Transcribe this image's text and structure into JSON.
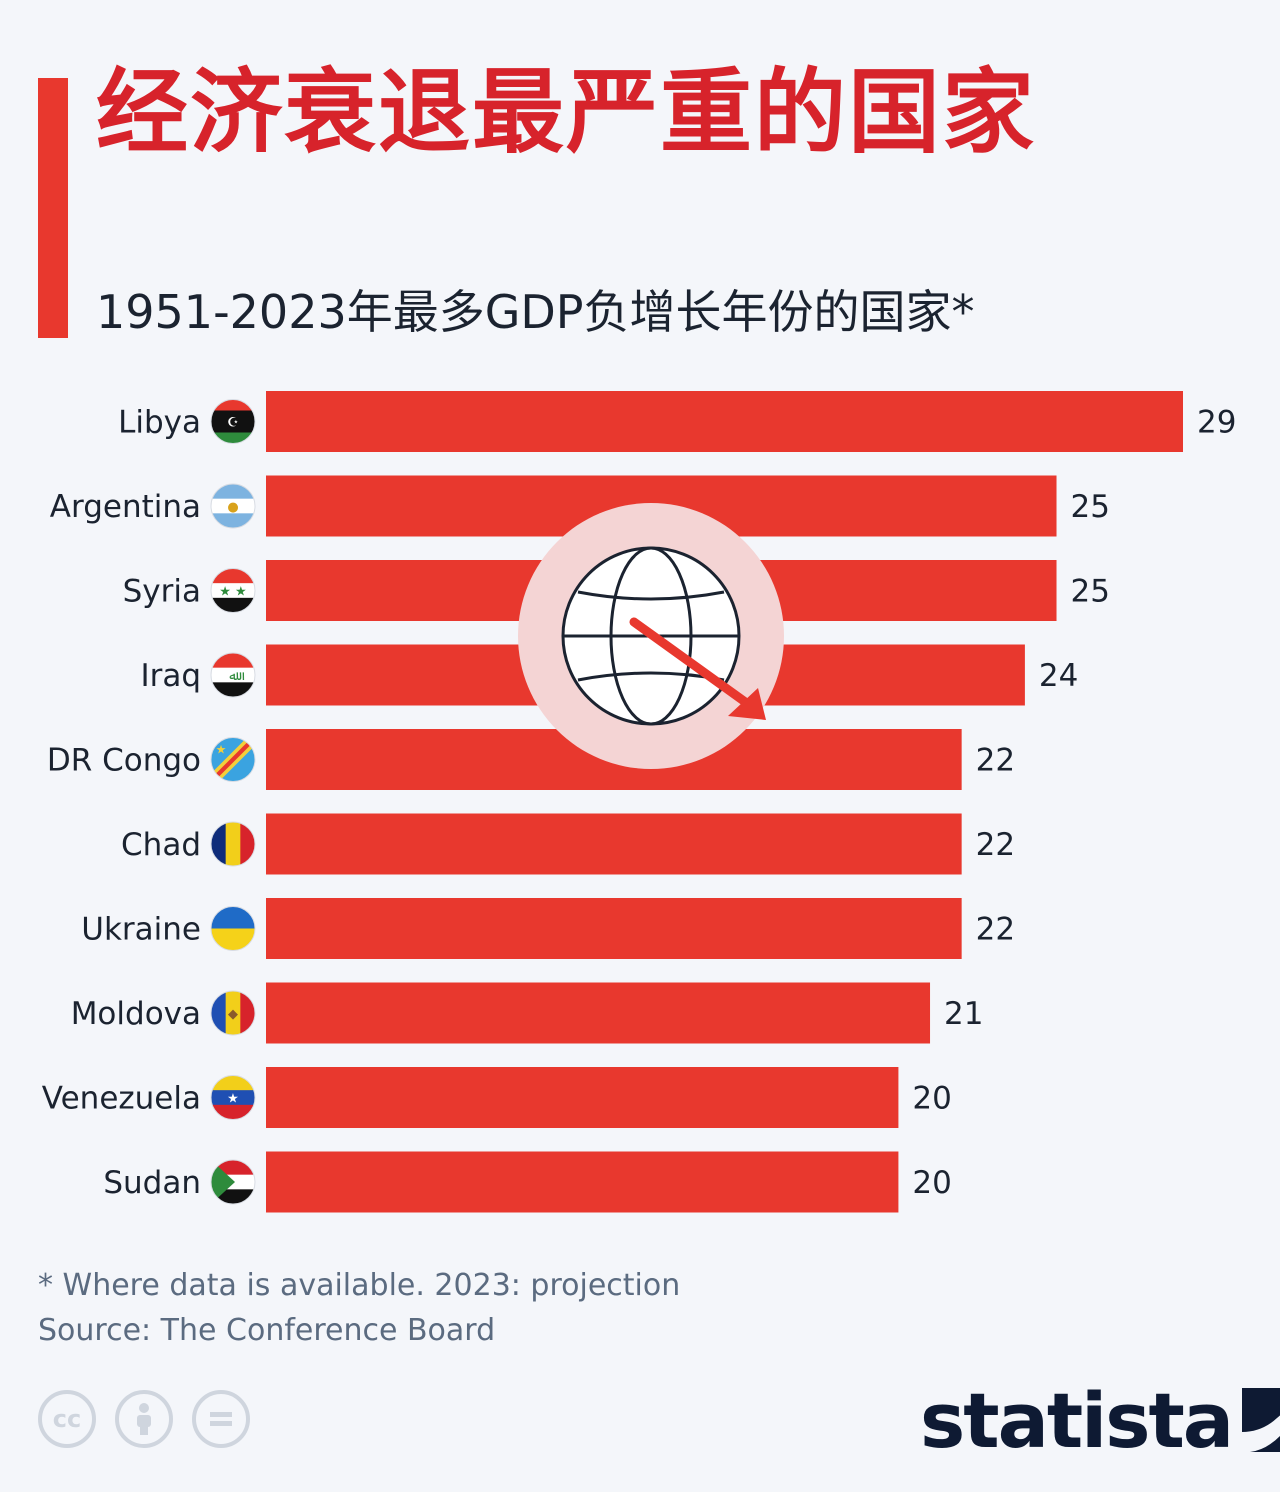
{
  "title": "经济衰退最严重的国家",
  "subtitle": "1951-2023年最多GDP负增长年份的国家*",
  "footnote": "* Where data is available. 2023: projection",
  "source": "Source: The Conference Board",
  "logo_text": "statista",
  "colors": {
    "bar": "#e8382e",
    "title": "#d7232b",
    "accent": "#e8382e",
    "circle_bg": "#f4d4d4"
  },
  "icons": [
    "globe-decline-icon",
    "cc-icon",
    "attribution-icon",
    "noderivs-icon",
    "statista-logo-icon"
  ],
  "chart_data": {
    "type": "bar",
    "orientation": "horizontal",
    "title": "经济衰退最严重的国家",
    "subtitle": "1951-2023年最多GDP负增长年份的国家*",
    "xlabel": "",
    "ylabel": "",
    "xlim": [
      0,
      29
    ],
    "grid": false,
    "categories": [
      "Libya",
      "Argentina",
      "Syria",
      "Iraq",
      "DR Congo",
      "Chad",
      "Ukraine",
      "Moldova",
      "Venezuela",
      "Sudan"
    ],
    "values": [
      29,
      25,
      25,
      24,
      22,
      22,
      22,
      21,
      20,
      20
    ]
  }
}
